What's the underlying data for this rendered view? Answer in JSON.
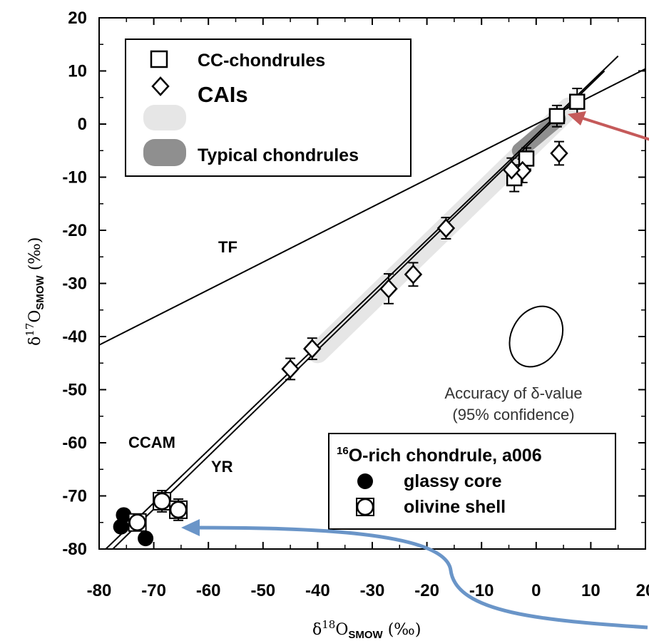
{
  "chart_data": {
    "type": "scatter",
    "xlabel": "δ18OSMOW (‰)",
    "ylabel": "δ17OSMOW (‰)",
    "xlim": [
      -80,
      20
    ],
    "ylim": [
      -80,
      20
    ],
    "x_ticks": [
      "-80",
      "-70",
      "-60",
      "-50",
      "-40",
      "-30",
      "-20",
      "-10",
      "0",
      "10",
      "20"
    ],
    "y_ticks": [
      "20",
      "10",
      "0",
      "-10",
      "-20",
      "-30",
      "-40",
      "-50",
      "-60",
      "-70",
      "-80"
    ],
    "legend_top": {
      "position": "top-left",
      "items": [
        {
          "label": "CC-chondrules",
          "marker": "square"
        },
        {
          "label": "CAIs",
          "marker": "diamond"
        },
        {
          "label": "",
          "marker": "light-band"
        },
        {
          "label": "Typical chondrules",
          "marker": "dark-band"
        }
      ]
    },
    "legend_bottom": {
      "position": "bottom-right",
      "title": "16O-rich chondrule, a006",
      "title_sup": "16",
      "title_rest": "O-rich chondrule, a006",
      "items": [
        {
          "label": "glassy core",
          "marker": "filled-circle"
        },
        {
          "label": "olivine shell",
          "marker": "open-circle-square"
        }
      ]
    },
    "lines": [
      {
        "name": "TF",
        "x": [
          -80,
          20
        ],
        "y": [
          -41.6,
          10.4
        ]
      },
      {
        "name": "CCAM",
        "x": [
          -80,
          15
        ],
        "y": [
          -81.2,
          12.8
        ]
      },
      {
        "name": "YR",
        "x": [
          -78.5,
          12.5
        ],
        "y": [
          -81.0,
          10.0
        ]
      }
    ],
    "annotations": [
      {
        "text": "TF",
        "x": -56,
        "y": -25
      },
      {
        "text": "CCAM",
        "x": -75,
        "y": -61
      },
      {
        "text": "YR",
        "x": -60,
        "y": -65.5
      }
    ],
    "accuracy_note": [
      "Accuracy of δ-value",
      "(95% confidence)"
    ],
    "accuracy_ellipse": {
      "cx": 0,
      "cy": -40,
      "rx": 4.5,
      "ry": 6,
      "rotate": 30
    },
    "bands": [
      {
        "name": "light",
        "x": [
          -40,
          6
        ],
        "y": [
          -43,
          3
        ]
      },
      {
        "name": "dark",
        "x": [
          -3,
          4
        ],
        "y": [
          -5,
          1
        ]
      }
    ],
    "series": [
      {
        "name": "CC-chondrules",
        "marker": "square",
        "points": [
          [
            3.8,
            1.5
          ],
          [
            7.5,
            4.2
          ],
          [
            -1.8,
            -6.5
          ],
          [
            -4.0,
            -10.2
          ]
        ],
        "err": [
          2,
          2.5,
          2,
          2.5
        ]
      },
      {
        "name": "CAIs",
        "marker": "diamond",
        "points": [
          [
            4.2,
            -5.5
          ],
          [
            -2.5,
            -8.8
          ],
          [
            -4.5,
            -8.6
          ],
          [
            -16.5,
            -19.6
          ],
          [
            -22.5,
            -28.3
          ],
          [
            -27.0,
            -31.0
          ],
          [
            -41.0,
            -42.3
          ],
          [
            -45.0,
            -46.1
          ]
        ],
        "err": [
          2.2,
          2.2,
          2.2,
          2,
          2.2,
          2.8,
          2,
          2
        ]
      },
      {
        "name": "glassy core",
        "marker": "filled-circle",
        "points": [
          [
            -75.5,
            -73.6
          ],
          [
            -76.0,
            -75.8
          ],
          [
            -71.5,
            -78.0
          ]
        ],
        "err": [
          0,
          0,
          0
        ]
      },
      {
        "name": "olivine shell",
        "marker": "open-circle-square",
        "points": [
          [
            -68.5,
            -71.0
          ],
          [
            -65.5,
            -72.6
          ],
          [
            -73.0,
            -75.0
          ]
        ],
        "err": [
          2,
          2,
          0
        ]
      }
    ]
  },
  "colors": {
    "red_arrow": "#c55a5a",
    "blue_arrow": "#6a95c8",
    "light_band": "#e6e6e6",
    "dark_band": "#8f8f8f"
  }
}
